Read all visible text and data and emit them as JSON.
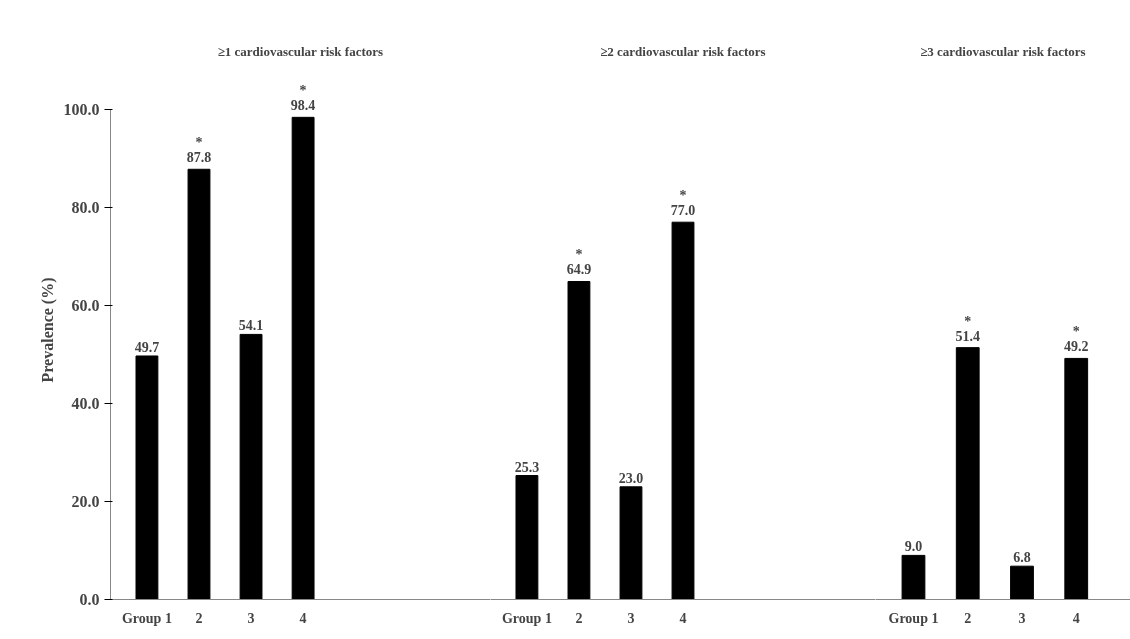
{
  "chart_data": [
    {
      "type": "bar",
      "title": "≥1 cardiovascular risk factors",
      "ylabel": "Prevalence (%)",
      "categories": [
        "Group 1",
        "2",
        "3",
        "4"
      ],
      "values": [
        49.7,
        87.8,
        54.1,
        98.4
      ],
      "color": "#000000",
      "value_labels": [
        "49.7",
        "*\n87.8",
        "54.1",
        "*\n98.4"
      ],
      "ylim": [
        0,
        100
      ],
      "yticks": [
        {
          "value": 0,
          "label": "0.0"
        },
        {
          "value": 20,
          "label": "20.0"
        },
        {
          "value": 40,
          "label": "40.0"
        },
        {
          "value": 60,
          "label": "60.0"
        },
        {
          "value": 80,
          "label": "80.0"
        },
        {
          "value": 100,
          "label": "100.0"
        }
      ],
      "grid": false
    },
    {
      "type": "bar",
      "title": "≥2 cardiovascular risk factors",
      "categories": [
        "Group 1",
        "2",
        "3",
        "4"
      ],
      "values": [
        25.3,
        64.9,
        23.0,
        77.0
      ],
      "color": "#000000",
      "value_labels": [
        "25.3",
        "*\n64.9",
        "23.0",
        "*\n77.0"
      ],
      "ylim": [
        0,
        100
      ],
      "tick_labels": "x",
      "grid": false
    },
    {
      "type": "bar",
      "title": "≥3 cardiovascular risk factors",
      "categories": [
        "Group 1",
        "2",
        "3",
        "4"
      ],
      "values": [
        9.0,
        51.4,
        6.8,
        49.2
      ],
      "color": "#000000",
      "value_labels": [
        "9.0",
        "*\n51.4",
        "6.8",
        "*\n49.2"
      ],
      "ylim": [
        0,
        100
      ],
      "tick_labels": "x",
      "grid": false
    }
  ]
}
